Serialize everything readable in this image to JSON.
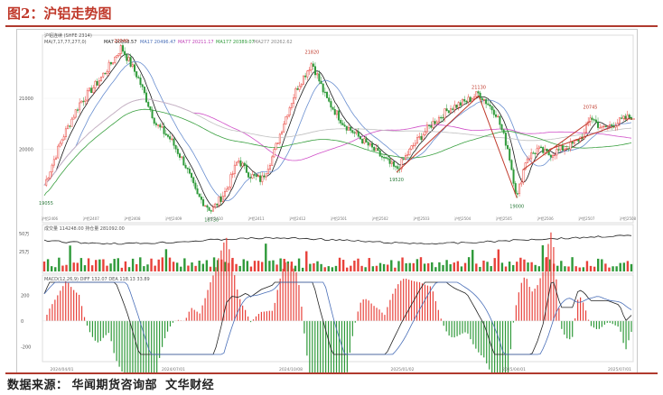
{
  "figure": {
    "title": "图2：沪铝走势图",
    "source_label": "数据来源：",
    "source_names": [
      "华闻期货咨询部",
      "文华财经"
    ]
  },
  "colors": {
    "accent": "#c0392b",
    "up": "#e8413a",
    "down": "#2f9a3a",
    "ma7": "#1a1a1a",
    "ma17": "#6a8fd0",
    "ma77": "#d050c8",
    "ma277": "#c0c0c0",
    "cyan": "#1aa0c8"
  },
  "chart_data": [
    {
      "type": "candlestick",
      "panel": "price",
      "header": "沪铝连续 (SHFE 2314)",
      "indicator_header": "MA(7,17,77,277,0)",
      "ma_values": [
        {
          "name": "MA7",
          "value": "20558.57"
        },
        {
          "name": "MA17",
          "value": "20496.47"
        },
        {
          "name": "MA77",
          "value": "20211.17"
        },
        {
          "name": "MA177",
          "value": "20389.07"
        },
        {
          "name": "MA277",
          "value": "20262.62"
        }
      ],
      "y_ticks": [
        21000,
        20000
      ],
      "ylim": [
        18600,
        22200
      ],
      "annotations": [
        {
          "label": "22040",
          "x": 0.131,
          "value": 22040
        },
        {
          "label": "21820",
          "x": 0.456,
          "value": 21820
        },
        {
          "label": "21130",
          "x": 0.74,
          "value": 21130
        },
        {
          "label": "20745",
          "x": 0.93,
          "value": 20745
        },
        {
          "label": "19055",
          "x": 0.003,
          "value": 19055
        },
        {
          "label": "18730",
          "x": 0.285,
          "value": 18730
        },
        {
          "label": "19520",
          "x": 0.6,
          "value": 19520
        },
        {
          "label": "19000",
          "x": 0.805,
          "value": 19000
        }
      ],
      "anchors": [
        [
          0,
          19300
        ],
        [
          0.03,
          20200
        ],
        [
          0.06,
          20900
        ],
        [
          0.09,
          21300
        ],
        [
          0.115,
          21700
        ],
        [
          0.131,
          22000
        ],
        [
          0.16,
          21400
        ],
        [
          0.19,
          20500
        ],
        [
          0.215,
          20200
        ],
        [
          0.24,
          19700
        ],
        [
          0.26,
          19100
        ],
        [
          0.285,
          18800
        ],
        [
          0.31,
          19200
        ],
        [
          0.33,
          19800
        ],
        [
          0.35,
          19500
        ],
        [
          0.37,
          19400
        ],
        [
          0.39,
          19900
        ],
        [
          0.41,
          20600
        ],
        [
          0.43,
          21200
        ],
        [
          0.456,
          21700
        ],
        [
          0.48,
          21000
        ],
        [
          0.51,
          20500
        ],
        [
          0.54,
          20200
        ],
        [
          0.57,
          19900
        ],
        [
          0.6,
          19600
        ],
        [
          0.63,
          20100
        ],
        [
          0.66,
          20500
        ],
        [
          0.69,
          20800
        ],
        [
          0.72,
          20950
        ],
        [
          0.74,
          21100
        ],
        [
          0.77,
          20700
        ],
        [
          0.79,
          20000
        ],
        [
          0.805,
          19050
        ],
        [
          0.82,
          19800
        ],
        [
          0.84,
          20000
        ],
        [
          0.86,
          19900
        ],
        [
          0.88,
          20000
        ],
        [
          0.9,
          20100
        ],
        [
          0.92,
          20300
        ],
        [
          0.93,
          20650
        ],
        [
          0.95,
          20400
        ],
        [
          0.97,
          20500
        ],
        [
          1.0,
          20650
        ]
      ],
      "series": [
        {
          "name": "MA7"
        },
        {
          "name": "MA17"
        },
        {
          "name": "MA77"
        },
        {
          "name": "MA277"
        }
      ],
      "x_labels": [
        "沪铝2406",
        "沪铝2407",
        "沪铝2408",
        "沪铝2409",
        "沪铝2410",
        "沪铝2411",
        "沪铝2412",
        "沪铝2501",
        "沪铝2502",
        "沪铝2503",
        "沪铝2504",
        "沪铝2505",
        "沪铝2506",
        "沪铝2507",
        "沪铝2508"
      ]
    },
    {
      "type": "bar",
      "panel": "volume",
      "header": "成交量 114248.00   持仓量 281092.00",
      "y_ticks": [
        "50万",
        "25万"
      ],
      "ylim": [
        0,
        500000
      ]
    },
    {
      "type": "bar",
      "panel": "macd",
      "header": "MACD(12,26,9)  DIFF 132.07  DEA 118.13  33.89",
      "y_ticks": [
        200,
        0,
        -200
      ],
      "ylim": [
        -260,
        300
      ],
      "x_dates": [
        "2024/04/01",
        "2024/07/01",
        "2024/10/08",
        "2025/01/02",
        "2025/04/01",
        "2025/07/01"
      ]
    }
  ]
}
